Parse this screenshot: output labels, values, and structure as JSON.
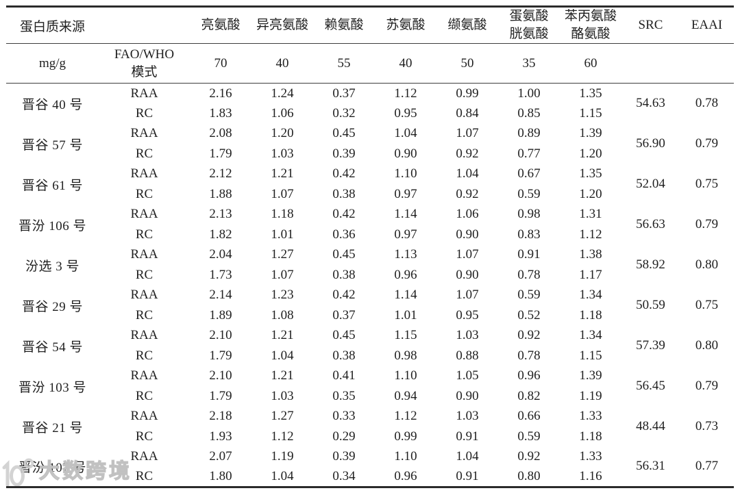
{
  "watermark": {
    "text": "大数跨境"
  },
  "table": {
    "header": {
      "protein_source": "蛋白质来源",
      "amino_columns": [
        {
          "lines": [
            "亮氨酸"
          ]
        },
        {
          "lines": [
            "异亮氨酸"
          ]
        },
        {
          "lines": [
            "赖氨酸"
          ]
        },
        {
          "lines": [
            "苏氨酸"
          ]
        },
        {
          "lines": [
            "缬氨酸"
          ]
        },
        {
          "lines": [
            "蛋氨酸",
            "胱氨酸"
          ]
        },
        {
          "lines": [
            "苯丙氨酸",
            "酪氨酸"
          ]
        }
      ],
      "src": "SRC",
      "eaai": "EAAI"
    },
    "reference_row": {
      "unit": "mg/g",
      "label_lines": [
        "FAO/WHO",
        "模式"
      ],
      "values": [
        "70",
        "40",
        "55",
        "40",
        "50",
        "35",
        "60"
      ]
    },
    "row_types": [
      "RAA",
      "RC"
    ],
    "rows": [
      {
        "variety": "晋谷 40 号",
        "raa": [
          "2.16",
          "1.24",
          "0.37",
          "1.12",
          "0.99",
          "1.00",
          "1.35"
        ],
        "rc": [
          "1.83",
          "1.06",
          "0.32",
          "0.95",
          "0.84",
          "0.85",
          "1.15"
        ],
        "src": "54.63",
        "eaai": "0.78"
      },
      {
        "variety": "晋谷 57 号",
        "raa": [
          "2.08",
          "1.20",
          "0.45",
          "1.04",
          "1.07",
          "0.89",
          "1.39"
        ],
        "rc": [
          "1.79",
          "1.03",
          "0.39",
          "0.90",
          "0.92",
          "0.77",
          "1.20"
        ],
        "src": "56.90",
        "eaai": "0.79"
      },
      {
        "variety": "晋谷 61 号",
        "raa": [
          "2.12",
          "1.21",
          "0.42",
          "1.10",
          "1.04",
          "0.67",
          "1.35"
        ],
        "rc": [
          "1.88",
          "1.07",
          "0.38",
          "0.97",
          "0.92",
          "0.59",
          "1.20"
        ],
        "src": "52.04",
        "eaai": "0.75"
      },
      {
        "variety": "晋汾 106 号",
        "raa": [
          "2.13",
          "1.18",
          "0.42",
          "1.14",
          "1.06",
          "0.98",
          "1.31"
        ],
        "rc": [
          "1.82",
          "1.01",
          "0.36",
          "0.97",
          "0.90",
          "0.83",
          "1.12"
        ],
        "src": "56.63",
        "eaai": "0.79"
      },
      {
        "variety": "汾选 3 号",
        "raa": [
          "2.04",
          "1.27",
          "0.45",
          "1.13",
          "1.07",
          "0.91",
          "1.38"
        ],
        "rc": [
          "1.73",
          "1.07",
          "0.38",
          "0.96",
          "0.90",
          "0.78",
          "1.17"
        ],
        "src": "58.92",
        "eaai": "0.80"
      },
      {
        "variety": "晋谷 29 号",
        "raa": [
          "2.14",
          "1.23",
          "0.42",
          "1.14",
          "1.07",
          "0.59",
          "1.34"
        ],
        "rc": [
          "1.89",
          "1.08",
          "0.37",
          "1.01",
          "0.95",
          "0.52",
          "1.18"
        ],
        "src": "50.59",
        "eaai": "0.75"
      },
      {
        "variety": "晋谷 54 号",
        "raa": [
          "2.10",
          "1.21",
          "0.45",
          "1.15",
          "1.03",
          "0.92",
          "1.34"
        ],
        "rc": [
          "1.79",
          "1.04",
          "0.38",
          "0.98",
          "0.88",
          "0.78",
          "1.15"
        ],
        "src": "57.39",
        "eaai": "0.80"
      },
      {
        "variety": "晋汾 103 号",
        "raa": [
          "2.10",
          "1.21",
          "0.41",
          "1.10",
          "1.05",
          "0.96",
          "1.39"
        ],
        "rc": [
          "1.79",
          "1.03",
          "0.35",
          "0.94",
          "0.90",
          "0.82",
          "1.19"
        ],
        "src": "56.45",
        "eaai": "0.79"
      },
      {
        "variety": "晋谷 21 号",
        "raa": [
          "2.18",
          "1.27",
          "0.33",
          "1.12",
          "1.03",
          "0.66",
          "1.33"
        ],
        "rc": [
          "1.93",
          "1.12",
          "0.29",
          "0.99",
          "0.91",
          "0.59",
          "1.18"
        ],
        "src": "48.44",
        "eaai": "0.73"
      },
      {
        "variety": "晋汾 107 号",
        "raa": [
          "2.07",
          "1.19",
          "0.39",
          "1.10",
          "1.04",
          "0.92",
          "1.33"
        ],
        "rc": [
          "1.80",
          "1.04",
          "0.34",
          "0.96",
          "0.91",
          "0.80",
          "1.16"
        ],
        "src": "56.31",
        "eaai": "0.77"
      }
    ]
  }
}
